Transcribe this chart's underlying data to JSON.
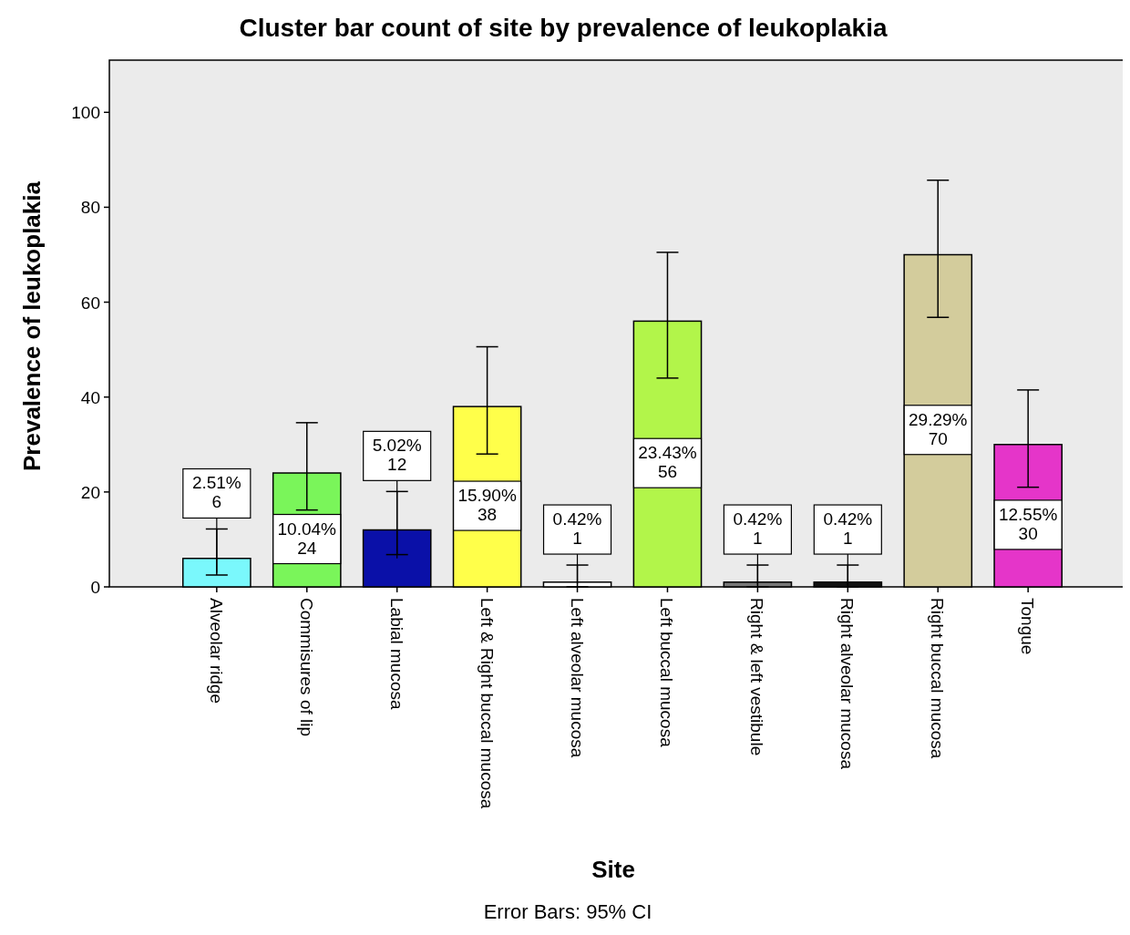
{
  "chart_data": {
    "type": "bar",
    "title": "Cluster bar count of site by prevalence of leukoplakia",
    "xlabel": "Site",
    "ylabel": "Prevalence of leukoplakia",
    "categories": [
      "Alveolar ridge",
      "Commisures of lip",
      "Labial mucosa",
      "Left & Right buccal mucosa",
      "Left alveolar mucosa",
      "Left buccal mucosa",
      "Right & left vestibule",
      "Right alveolar mucosa",
      "Right buccal mucosa",
      "Tongue"
    ],
    "values": [
      6,
      24,
      12,
      38,
      1,
      56,
      1,
      1,
      70,
      30
    ],
    "colors": [
      "#7af8fc",
      "#7af55a",
      "#0a10a8",
      "#ffff4a",
      "#ffffff",
      "#b2f54a",
      "#777777",
      "#111111",
      "#d3cc9c",
      "#e535c9"
    ],
    "errors": [
      [
        2.5,
        12.2
      ],
      [
        16.2,
        34.6
      ],
      [
        6.8,
        20.1
      ],
      [
        28,
        50.6
      ],
      [
        0,
        4.6
      ],
      [
        44,
        70.5
      ],
      [
        0,
        4.6
      ],
      [
        0,
        4.6
      ],
      [
        56.8,
        85.7
      ],
      [
        21,
        41.5
      ]
    ],
    "value_labels": [
      "2.51%\n6",
      "10.04%\n24",
      "5.02%\n12",
      "15.90%\n38",
      "0.42%\n1",
      "23.43%\n56",
      "0.42%\n1",
      "0.42%\n1",
      "29.29%\n70",
      "12.55%\n30"
    ],
    "ylim": [
      0,
      111
    ],
    "yticks": [
      0,
      20,
      40,
      60,
      80,
      100
    ],
    "grid": false,
    "annotations": [
      "Error Bars: 95% CI"
    ]
  }
}
